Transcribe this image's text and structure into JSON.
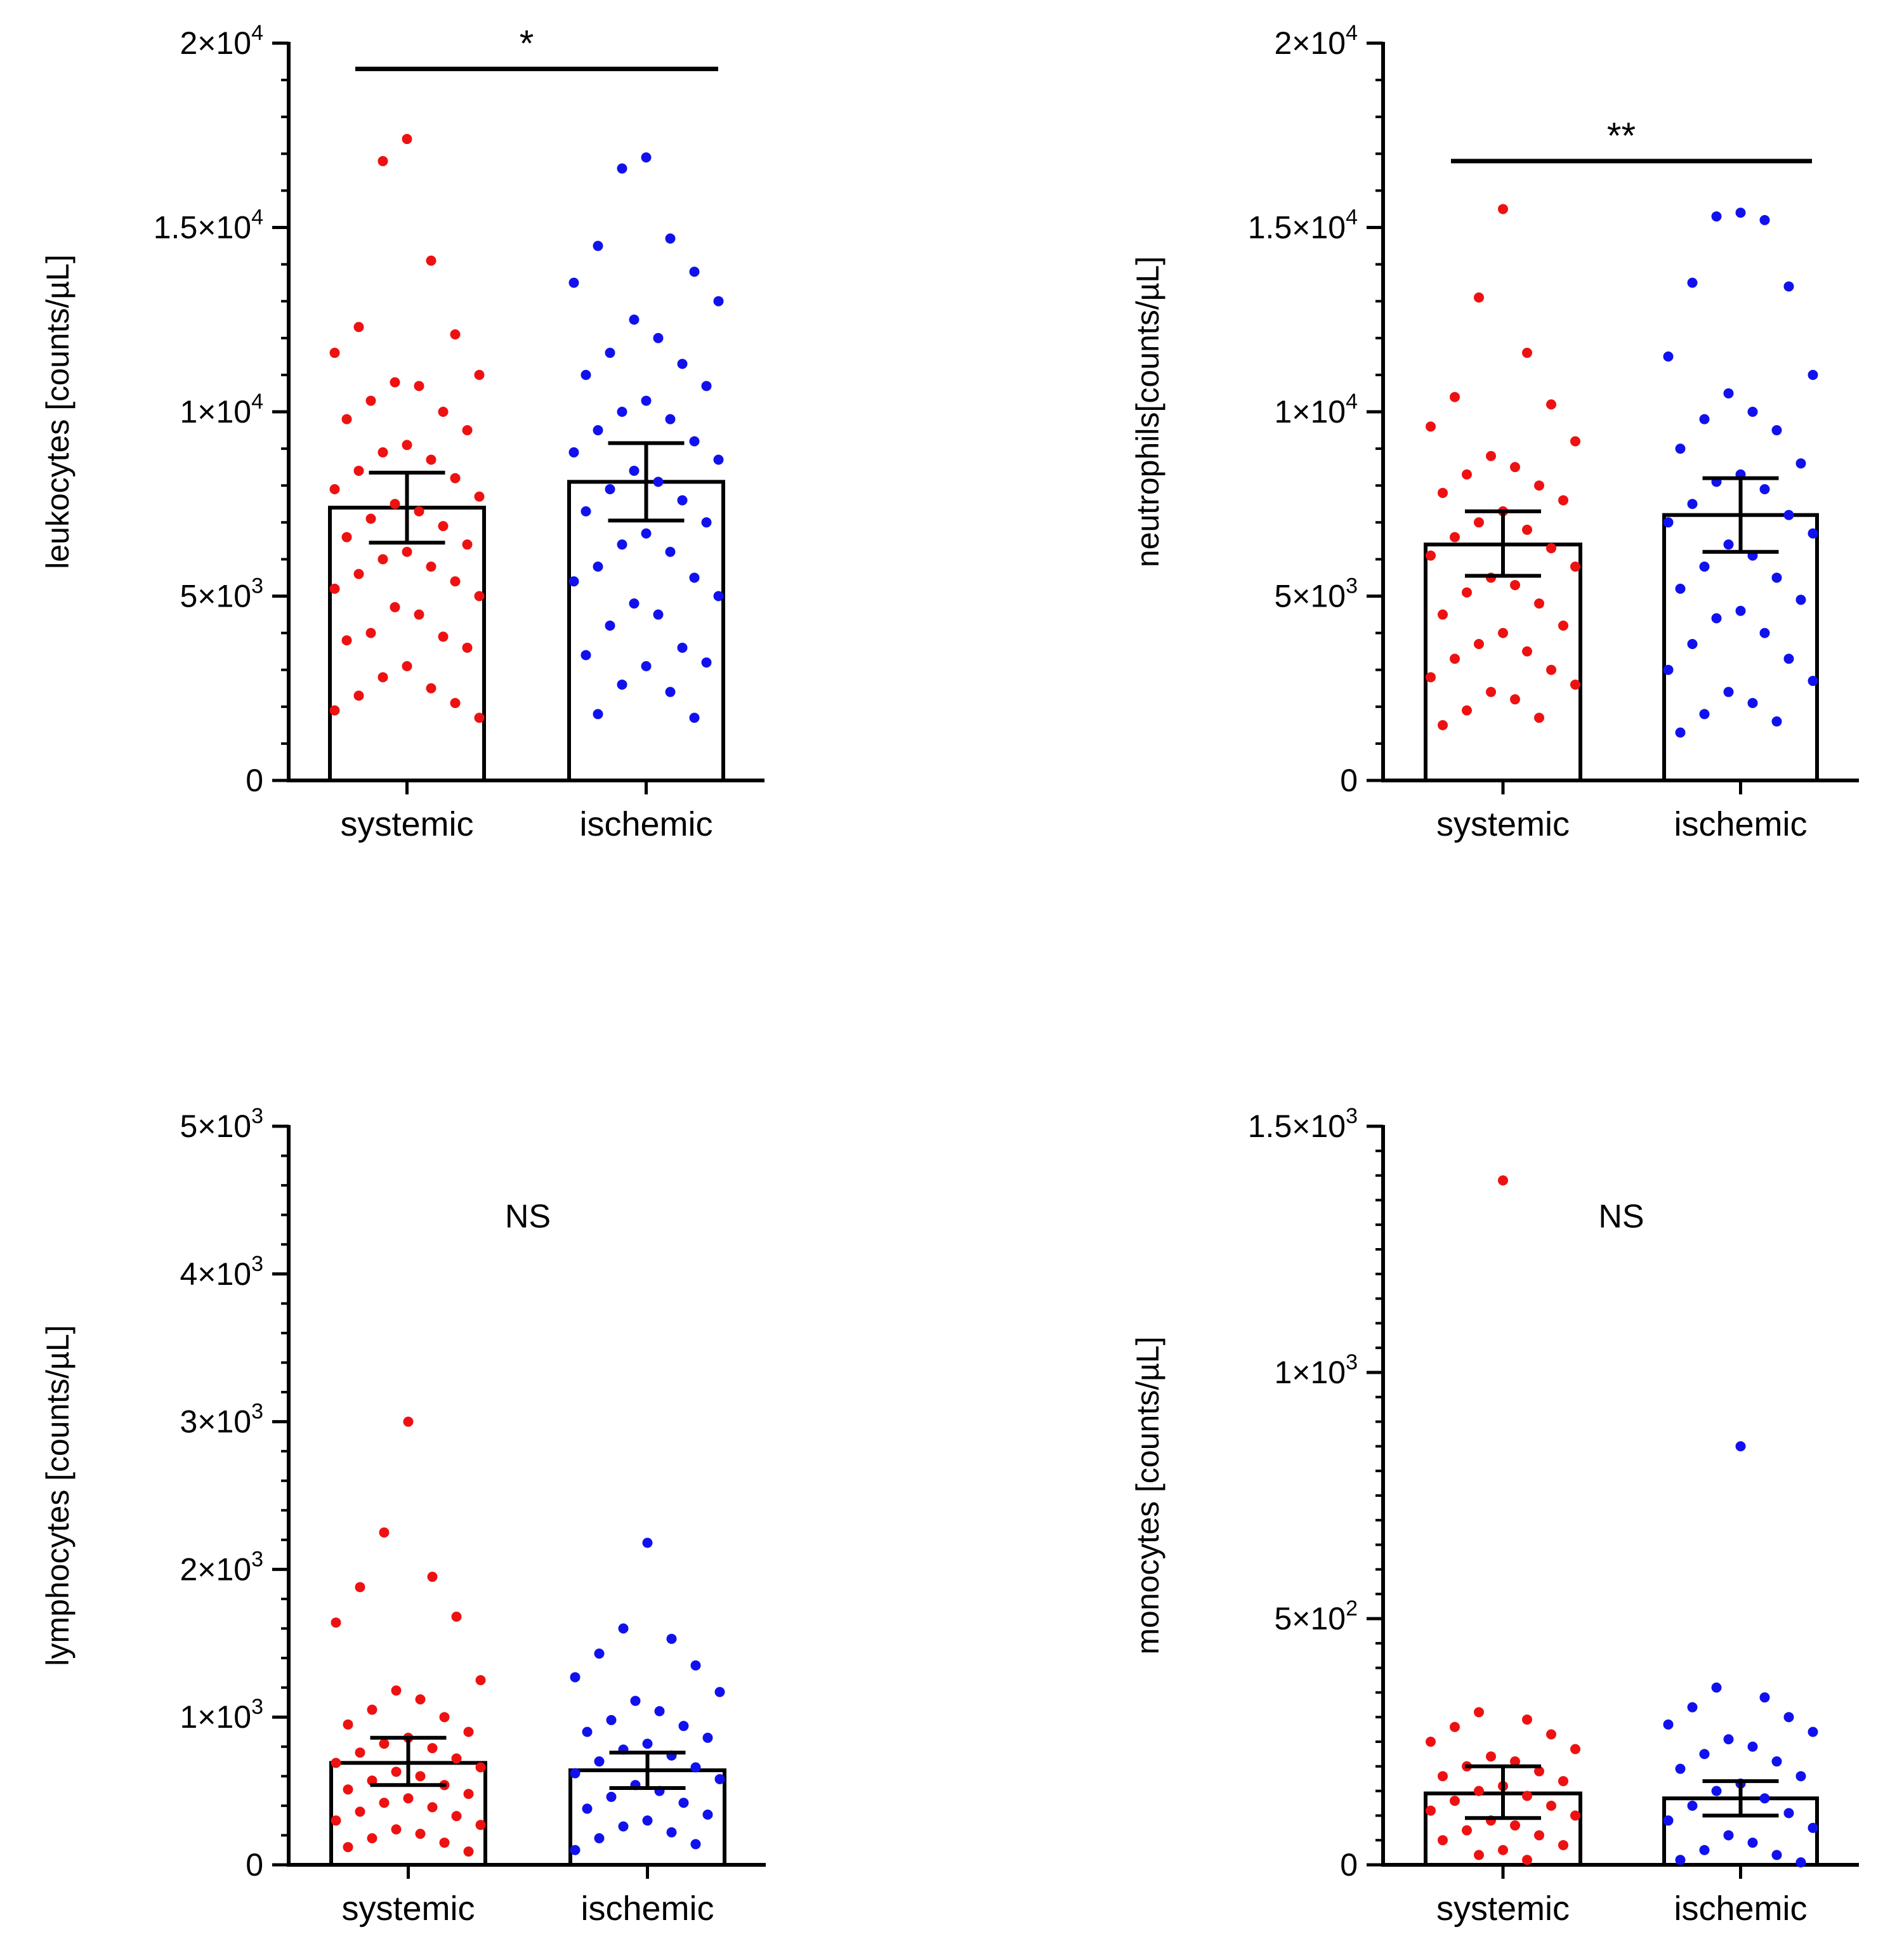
{
  "colors": {
    "systemic": "#ee1111",
    "ischemic": "#1111ee",
    "axis": "#000000",
    "bar_fill": "#ffffff"
  },
  "chart_data": [
    {
      "id": "leukocytes",
      "type": "bar",
      "ylabel": "leukocytes [counts/µL]",
      "ylim": [
        0,
        20000
      ],
      "yticks": [
        {
          "value": 0,
          "mant": "0",
          "exp": ""
        },
        {
          "value": 5000,
          "mant": "5×10",
          "exp": "3"
        },
        {
          "value": 10000,
          "mant": "1×10",
          "exp": "4"
        },
        {
          "value": 15000,
          "mant": "1.5×10",
          "exp": "4"
        },
        {
          "value": 20000,
          "mant": "2×10",
          "exp": "4"
        }
      ],
      "minor_step": 1000,
      "categories": [
        "systemic",
        "ischemic"
      ],
      "means": [
        7400,
        8100
      ],
      "ci": [
        [
          6450,
          8350
        ],
        [
          7050,
          9150
        ]
      ],
      "significance": {
        "label": "*",
        "y": 19300,
        "show_line": true
      },
      "points": [
        [
          17400,
          16800,
          14100,
          12300,
          12100,
          11600,
          11000,
          10800,
          10700,
          10300,
          10000,
          9800,
          9500,
          9100,
          8900,
          8700,
          8400,
          8200,
          7900,
          7700,
          7500,
          7300,
          7100,
          6900,
          6600,
          6400,
          6200,
          6000,
          5800,
          5600,
          5400,
          5200,
          5000,
          4700,
          4500,
          4000,
          3900,
          3800,
          3600,
          3100,
          2800,
          2500,
          2300,
          2100,
          1900,
          1700
        ],
        [
          16900,
          16600,
          14700,
          14500,
          13800,
          13500,
          13000,
          12500,
          12000,
          11600,
          11300,
          11000,
          10700,
          10300,
          10000,
          9800,
          9500,
          9200,
          8900,
          8700,
          8400,
          8100,
          7900,
          7600,
          7300,
          7000,
          6700,
          6400,
          6200,
          5800,
          5500,
          5400,
          5000,
          4800,
          4500,
          4200,
          3600,
          3400,
          3200,
          3100,
          2600,
          2400,
          1800,
          1700
        ]
      ]
    },
    {
      "id": "neutrophils",
      "type": "bar",
      "ylabel": "neutrophils[counts/µL]",
      "ylim": [
        0,
        20000
      ],
      "yticks": [
        {
          "value": 0,
          "mant": "0",
          "exp": ""
        },
        {
          "value": 5000,
          "mant": "5×10",
          "exp": "3"
        },
        {
          "value": 10000,
          "mant": "1×10",
          "exp": "4"
        },
        {
          "value": 15000,
          "mant": "1.5×10",
          "exp": "4"
        },
        {
          "value": 20000,
          "mant": "2×10",
          "exp": "4"
        }
      ],
      "minor_step": 1000,
      "categories": [
        "systemic",
        "ischemic"
      ],
      "means": [
        6400,
        7200
      ],
      "ci": [
        [
          5550,
          7300
        ],
        [
          6200,
          8200
        ]
      ],
      "significance": {
        "label": "**",
        "y": 16800,
        "show_line": true
      },
      "points": [
        [
          15500,
          13100,
          11600,
          10400,
          10200,
          9600,
          9200,
          8800,
          8500,
          8300,
          8000,
          7800,
          7600,
          7300,
          7000,
          6800,
          6600,
          6300,
          6100,
          5800,
          5500,
          5300,
          5100,
          4800,
          4500,
          4200,
          4000,
          3700,
          3500,
          3300,
          3000,
          2800,
          2600,
          2400,
          2200,
          1900,
          1700,
          1500
        ],
        [
          15400,
          15300,
          15200,
          13500,
          13400,
          11500,
          11000,
          10500,
          10000,
          9800,
          9500,
          9000,
          8600,
          8300,
          8100,
          7900,
          7500,
          7200,
          7000,
          6700,
          6400,
          6100,
          5800,
          5500,
          5200,
          4900,
          4600,
          4400,
          4000,
          3700,
          3300,
          3000,
          2700,
          2400,
          2100,
          1800,
          1600,
          1300
        ]
      ]
    },
    {
      "id": "lymphocytes",
      "type": "bar",
      "ylabel": "lymphocytes [counts/µL]",
      "ylim": [
        0,
        5000
      ],
      "yticks": [
        {
          "value": 0,
          "mant": "0",
          "exp": ""
        },
        {
          "value": 1000,
          "mant": "1×10",
          "exp": "3"
        },
        {
          "value": 2000,
          "mant": "2×10",
          "exp": "3"
        },
        {
          "value": 3000,
          "mant": "3×10",
          "exp": "3"
        },
        {
          "value": 4000,
          "mant": "4×10",
          "exp": "3"
        },
        {
          "value": 5000,
          "mant": "5×10",
          "exp": "3"
        }
      ],
      "minor_step": 200,
      "categories": [
        "systemic",
        "ischemic"
      ],
      "means": [
        690,
        640
      ],
      "ci": [
        [
          540,
          860
        ],
        [
          520,
          760
        ]
      ],
      "significance": {
        "label": "NS",
        "y": 4400,
        "show_line": false
      },
      "points": [
        [
          3000,
          2250,
          1950,
          1880,
          1680,
          1640,
          1250,
          1180,
          1120,
          1050,
          1000,
          950,
          900,
          860,
          820,
          790,
          760,
          720,
          690,
          660,
          630,
          600,
          570,
          540,
          510,
          480,
          450,
          420,
          390,
          360,
          330,
          300,
          270,
          240,
          210,
          180,
          150,
          120,
          90
        ],
        [
          2180,
          1600,
          1530,
          1430,
          1350,
          1270,
          1170,
          1110,
          1040,
          980,
          940,
          900,
          860,
          820,
          780,
          740,
          700,
          660,
          620,
          580,
          540,
          500,
          460,
          420,
          380,
          340,
          300,
          260,
          220,
          180,
          140,
          100
        ]
      ]
    },
    {
      "id": "monocytes",
      "type": "bar",
      "ylabel": "monocytes [counts/µL]",
      "ylim": [
        0,
        1500
      ],
      "yticks": [
        {
          "value": 0,
          "mant": "0",
          "exp": ""
        },
        {
          "value": 500,
          "mant": "5×10",
          "exp": "2"
        },
        {
          "value": 1000,
          "mant": "1×10",
          "exp": "3"
        },
        {
          "value": 1500,
          "mant": "1.5×10",
          "exp": "3"
        }
      ],
      "minor_step": 50,
      "categories": [
        "systemic",
        "ischemic"
      ],
      "means": [
        145,
        135
      ],
      "ci": [
        [
          95,
          200
        ],
        [
          100,
          170
        ]
      ],
      "significance": {
        "label": "NS",
        "y": 1320,
        "show_line": false
      },
      "points": [
        [
          1390,
          310,
          295,
          280,
          265,
          250,
          235,
          220,
          210,
          200,
          190,
          180,
          170,
          160,
          150,
          140,
          130,
          120,
          110,
          100,
          90,
          80,
          70,
          60,
          50,
          40,
          30,
          20,
          10
        ],
        [
          850,
          360,
          340,
          320,
          300,
          285,
          270,
          255,
          240,
          225,
          210,
          195,
          180,
          165,
          150,
          135,
          120,
          105,
          90,
          75,
          60,
          45,
          30,
          20,
          10,
          5
        ]
      ]
    }
  ]
}
